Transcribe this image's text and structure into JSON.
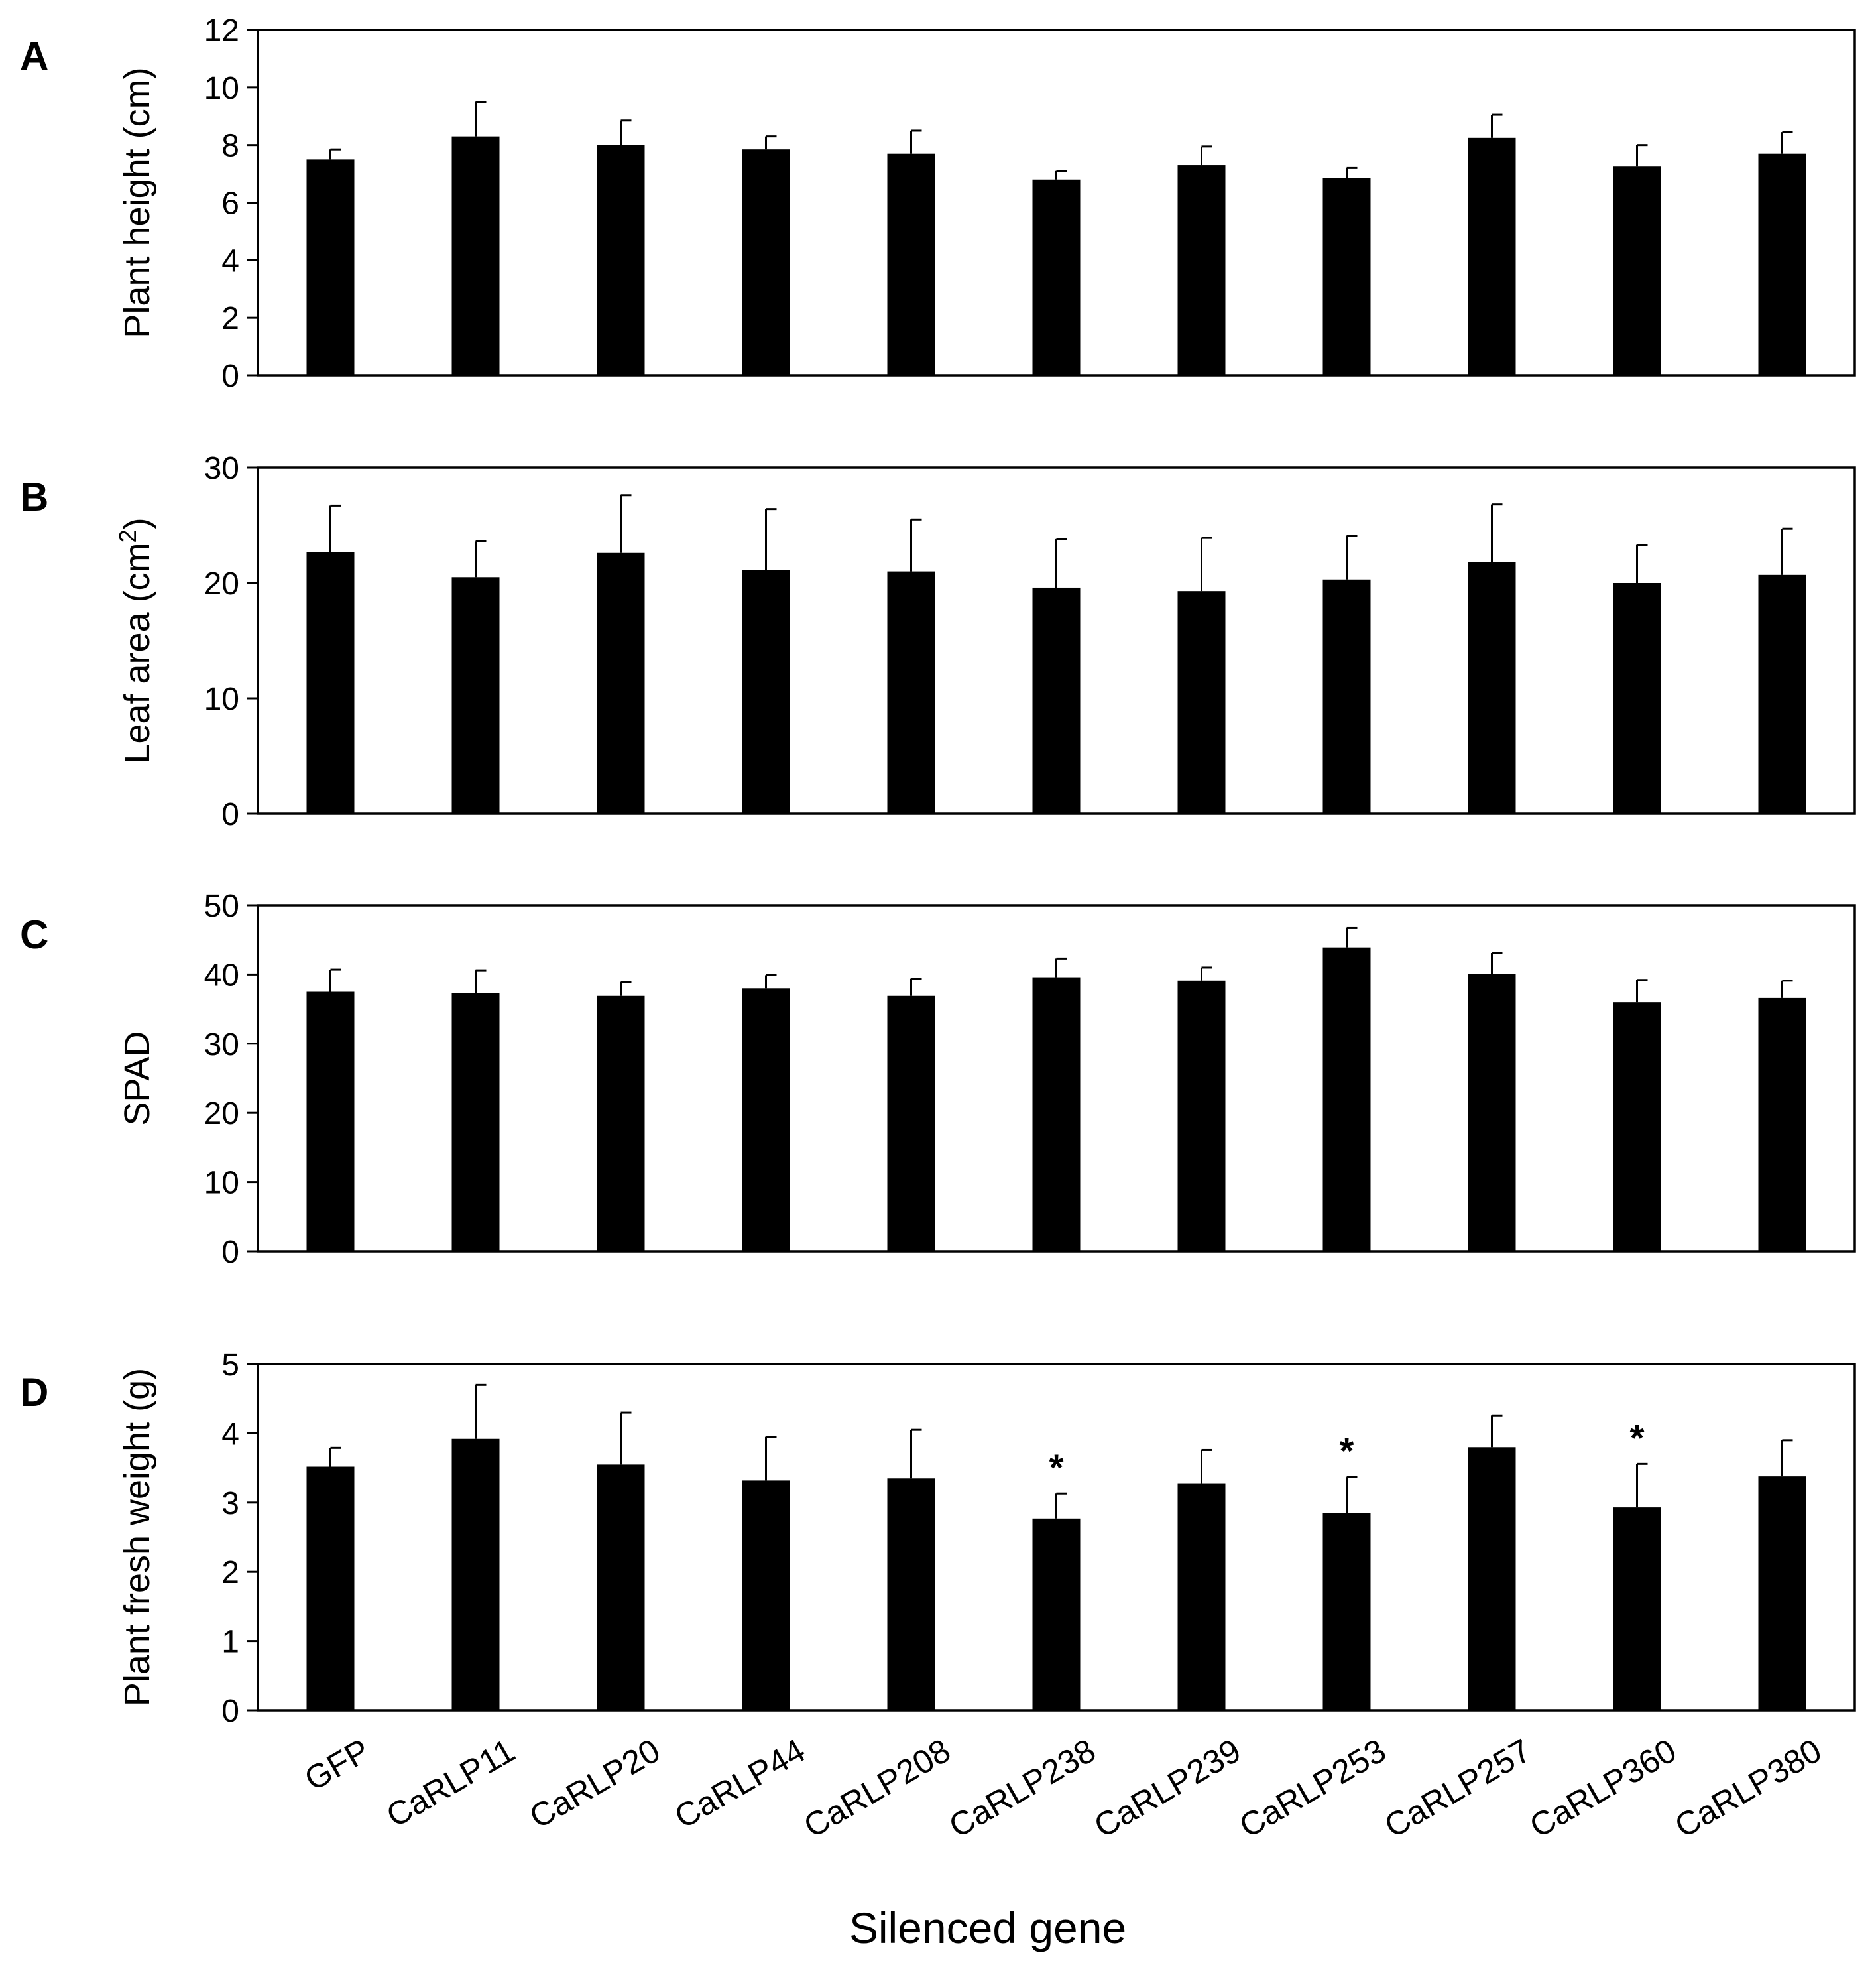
{
  "figure": {
    "xlabel": "Silenced gene"
  },
  "chart_data": [
    {
      "type": "bar",
      "panel": "A",
      "title": "",
      "ylabel": "Plant height (cm)",
      "ylim": [
        0,
        12
      ],
      "yticks": [
        "0",
        "2",
        "4",
        "6",
        "8",
        "10",
        "12"
      ],
      "categories": [
        "GFP",
        "CaRLP11",
        "CaRLP20",
        "CaRLP44",
        "CaRLP208",
        "CaRLP238",
        "CaRLP239",
        "CaRLP253",
        "CaRLP257",
        "CaRLP360",
        "CaRLP380"
      ],
      "values": [
        7.5,
        8.3,
        8.0,
        7.85,
        7.7,
        6.8,
        7.3,
        6.85,
        8.25,
        7.25,
        7.7
      ],
      "errors": [
        0.35,
        1.2,
        0.85,
        0.45,
        0.8,
        0.3,
        0.65,
        0.35,
        0.8,
        0.75,
        0.75
      ],
      "significance": [
        "",
        "",
        "",
        "",
        "",
        "",
        "",
        "",
        "",
        "",
        ""
      ]
    },
    {
      "type": "bar",
      "panel": "B",
      "title": "",
      "ylabel_parts": [
        "Leaf area (cm",
        "2",
        ")"
      ],
      "ylim": [
        0,
        30
      ],
      "yticks": [
        "0",
        "10",
        "20",
        "30"
      ],
      "categories": [
        "GFP",
        "CaRLP11",
        "CaRLP20",
        "CaRLP44",
        "CaRLP208",
        "CaRLP238",
        "CaRLP239",
        "CaRLP253",
        "CaRLP257",
        "CaRLP360",
        "CaRLP380"
      ],
      "values": [
        22.7,
        20.5,
        22.6,
        21.1,
        21.0,
        19.6,
        19.3,
        20.3,
        21.8,
        20.0,
        20.7
      ],
      "errors": [
        4.0,
        3.1,
        5.0,
        5.3,
        4.5,
        4.2,
        4.6,
        3.8,
        5.0,
        3.3,
        4.0
      ],
      "significance": [
        "",
        "",
        "",
        "",
        "",
        "",
        "",
        "",
        "",
        "",
        ""
      ]
    },
    {
      "type": "bar",
      "panel": "C",
      "title": "",
      "ylabel": "SPAD",
      "ylim": [
        0,
        50
      ],
      "yticks": [
        "0",
        "10",
        "20",
        "30",
        "40",
        "50"
      ],
      "categories": [
        "GFP",
        "CaRLP11",
        "CaRLP20",
        "CaRLP44",
        "CaRLP208",
        "CaRLP238",
        "CaRLP239",
        "CaRLP253",
        "CaRLP257",
        "CaRLP360",
        "CaRLP380"
      ],
      "values": [
        37.5,
        37.3,
        36.9,
        38.0,
        36.9,
        39.6,
        39.1,
        43.9,
        40.1,
        36.0,
        36.6
      ],
      "errors": [
        3.2,
        3.3,
        2.0,
        1.9,
        2.5,
        2.7,
        1.9,
        2.8,
        3.0,
        3.2,
        2.5
      ],
      "significance": [
        "",
        "",
        "",
        "",
        "",
        "",
        "",
        "",
        "",
        "",
        ""
      ]
    },
    {
      "type": "bar",
      "panel": "D",
      "title": "",
      "ylabel": "Plant fresh weight (g)",
      "ylim": [
        0,
        5
      ],
      "yticks": [
        "0",
        "1",
        "2",
        "3",
        "4",
        "5"
      ],
      "categories": [
        "GFP",
        "CaRLP11",
        "CaRLP20",
        "CaRLP44",
        "CaRLP208",
        "CaRLP238",
        "CaRLP239",
        "CaRLP253",
        "CaRLP257",
        "CaRLP360",
        "CaRLP380"
      ],
      "values": [
        3.52,
        3.92,
        3.55,
        3.32,
        3.35,
        2.77,
        3.28,
        2.85,
        3.8,
        2.93,
        3.38
      ],
      "errors": [
        0.27,
        0.78,
        0.75,
        0.63,
        0.7,
        0.36,
        0.48,
        0.52,
        0.46,
        0.63,
        0.52
      ],
      "significance": [
        "",
        "",
        "",
        "",
        "",
        "*",
        "",
        "*",
        "",
        "*",
        ""
      ]
    }
  ]
}
